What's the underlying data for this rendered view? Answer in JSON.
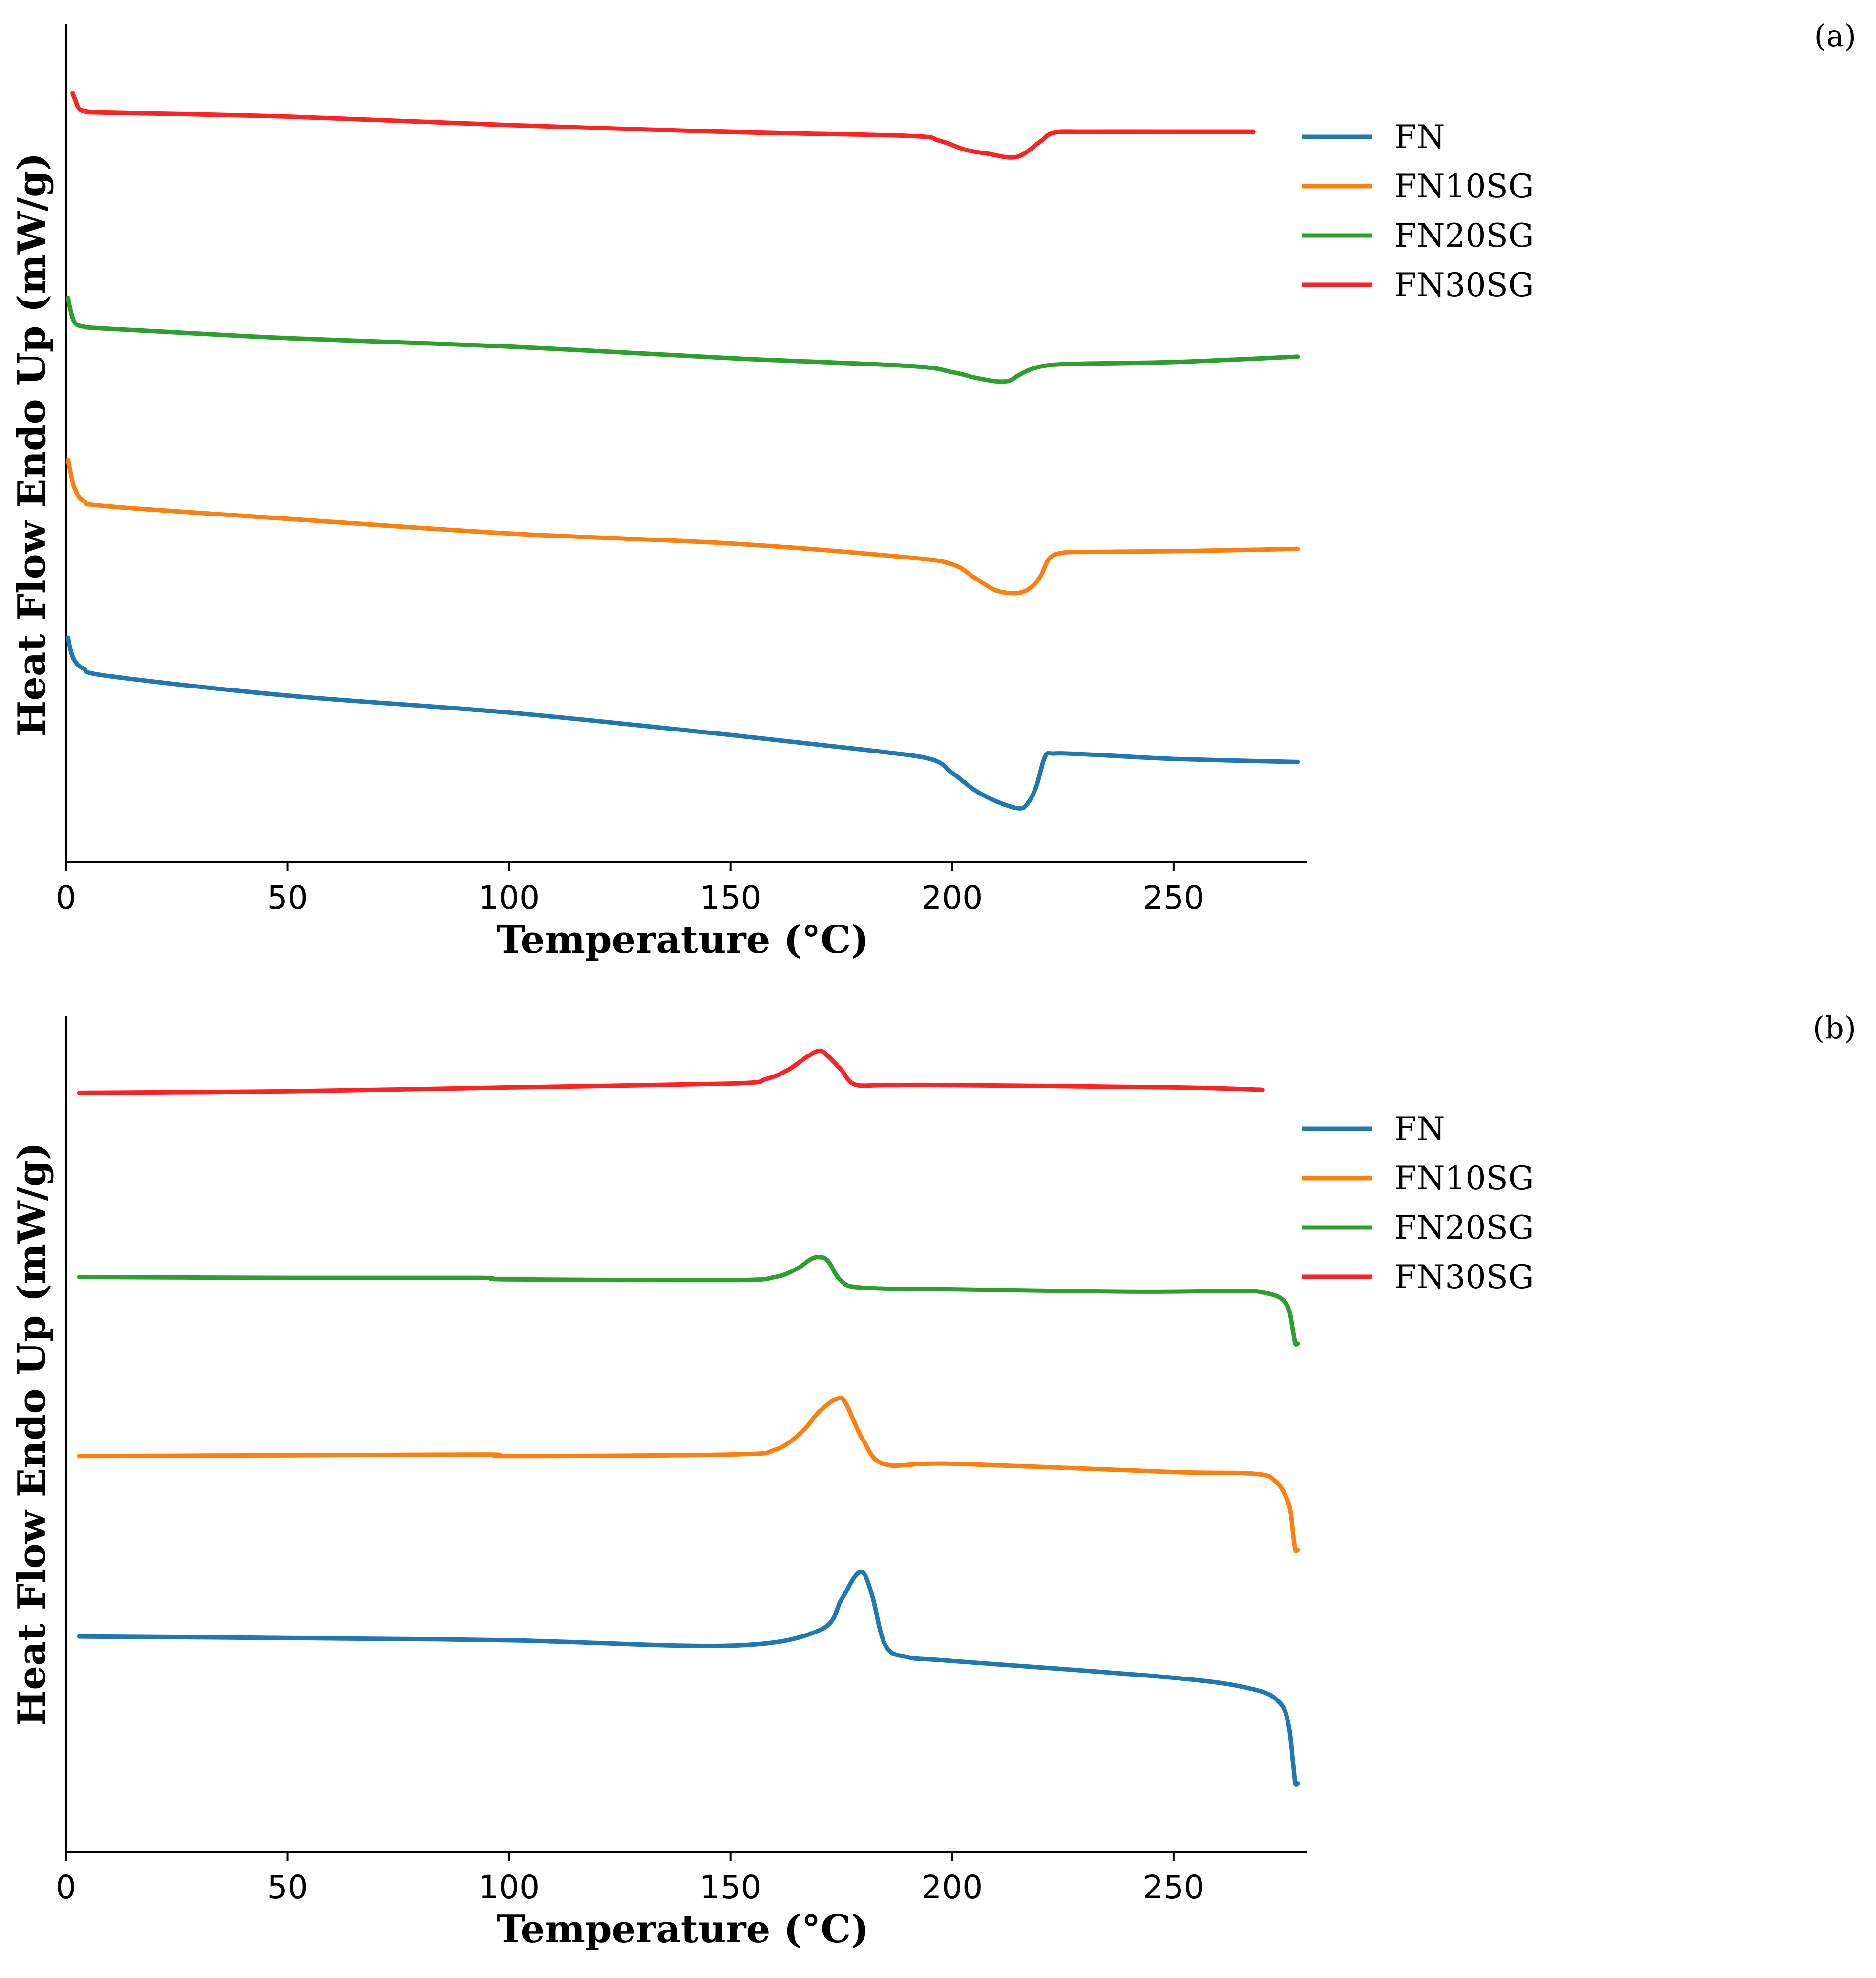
{
  "chart_data": [
    {
      "type": "line",
      "panel_label": "(a)",
      "xlabel": "Temperature (°C)",
      "ylabel": "Heat Flow Endo Up (mW/g)",
      "xlim": [
        0,
        280
      ],
      "ylim": [
        0,
        100
      ],
      "x_ticks": [
        "0",
        "50",
        "100",
        "150",
        "200",
        "250"
      ],
      "legend_position": "top-right",
      "series": [
        {
          "name": "FN",
          "color": "#1f77b4",
          "x": [
            0.5,
            1,
            2,
            4,
            10,
            50,
            100,
            150,
            180,
            195,
            200,
            205,
            210,
            215,
            217,
            219,
            221,
            223,
            230,
            250,
            278
          ],
          "y": [
            25,
            23.5,
            22,
            21,
            20,
            17.5,
            15.3,
            12.4,
            10.5,
            9.3,
            7.5,
            5.3,
            3.8,
            2.9,
            3.5,
            5.7,
            9.6,
            10,
            9.9,
            9.3,
            8.9
          ]
        },
        {
          "name": "FN10SG",
          "color": "#ff7f0e",
          "x": [
            0.5,
            1,
            2,
            4,
            10,
            50,
            100,
            150,
            190,
            200,
            205,
            210,
            215,
            218,
            220,
            222,
            225,
            230,
            250,
            278
          ],
          "y": [
            48,
            46.5,
            44.3,
            42.7,
            42,
            40.4,
            38.5,
            37.2,
            35.4,
            34.5,
            32.8,
            31.1,
            30.8,
            31.6,
            33,
            35.3,
            36,
            36.1,
            36.2,
            36.5
          ]
        },
        {
          "name": "FN20SG",
          "color": "#2ca02c",
          "x": [
            0.5,
            1,
            2,
            4,
            10,
            50,
            100,
            150,
            190,
            200,
            205,
            210,
            213,
            215,
            218,
            222,
            230,
            250,
            278
          ],
          "y": [
            69,
            67.5,
            65.8,
            65.3,
            65,
            63.8,
            62.7,
            61.2,
            60.2,
            59.4,
            58.7,
            58.2,
            58.3,
            59,
            59.8,
            60.3,
            60.5,
            60.7,
            61.4
          ]
        },
        {
          "name": "FN30SG",
          "color": "#ff2222",
          "x": [
            1.5,
            2,
            3,
            5,
            10,
            50,
            100,
            150,
            190,
            197,
            203,
            208,
            213,
            216,
            220,
            223,
            230,
            250,
            268
          ],
          "y": [
            95.5,
            94.8,
            93.5,
            93.1,
            93,
            92.5,
            91.4,
            90.5,
            90,
            89.4,
            88.2,
            87.7,
            87.2,
            87.6,
            89.3,
            90.4,
            90.5,
            90.5,
            90.5
          ]
        }
      ]
    },
    {
      "type": "line",
      "panel_label": "(b)",
      "xlabel": "Temperature (°C)",
      "ylabel": "Heat Flow Endo Up (mW/g)",
      "xlim": [
        0,
        280
      ],
      "ylim": [
        0,
        100
      ],
      "x_ticks": [
        "0",
        "50",
        "100",
        "150",
        "200",
        "250"
      ],
      "legend_position": "top-right",
      "series": [
        {
          "name": "FN",
          "color": "#1f77b4",
          "x": [
            3,
            50,
            100,
            150,
            170,
            175,
            178,
            180,
            182,
            185,
            190,
            200,
            250,
            268,
            274,
            276,
            277,
            277.5,
            278
          ],
          "y": [
            23.7,
            23.5,
            23.2,
            22.5,
            24.5,
            28.5,
            31.5,
            32,
            29,
            22.5,
            21,
            20.5,
            18.3,
            16.8,
            15,
            12,
            7,
            4.5,
            4.5
          ]
        },
        {
          "name": "FN10SG",
          "color": "#ff7f0e",
          "x": [
            3,
            50,
            95,
            100,
            150,
            160,
            166,
            170,
            174,
            176,
            180,
            185,
            200,
            250,
            268,
            273,
            276,
            277,
            277.5,
            278
          ],
          "y": [
            47.3,
            47.4,
            47.5,
            47.3,
            47.5,
            48.1,
            50.4,
            53.1,
            54.8,
            54.2,
            49.3,
            46.2,
            46.3,
            45.2,
            45.0,
            44,
            41,
            37,
            35,
            35
          ]
        },
        {
          "name": "FN20SG",
          "color": "#2ca02c",
          "x": [
            3,
            50,
            93,
            100,
            150,
            160,
            165,
            168,
            170,
            172,
            175,
            180,
            200,
            240,
            265,
            270,
            274,
            276,
            277,
            277.5,
            278
          ],
          "y": [
            70.7,
            70.6,
            70.6,
            70.4,
            70.3,
            70.7,
            71.8,
            73,
            73.3,
            72.8,
            70.2,
            69.3,
            69.1,
            68.8,
            68.9,
            68.7,
            68,
            66.5,
            63.5,
            62,
            62
          ]
        },
        {
          "name": "FN30SG",
          "color": "#ff2222",
          "x": [
            3,
            50,
            100,
            150,
            158,
            163,
            167,
            170,
            172,
            175,
            178,
            185,
            200,
            250,
            270
          ],
          "y": [
            94.8,
            95,
            95.5,
            96,
            96.6,
            97.8,
            99.4,
            100.3,
            99.6,
            97.8,
            95.9,
            95.8,
            95.8,
            95.5,
            95.2
          ]
        }
      ]
    }
  ]
}
